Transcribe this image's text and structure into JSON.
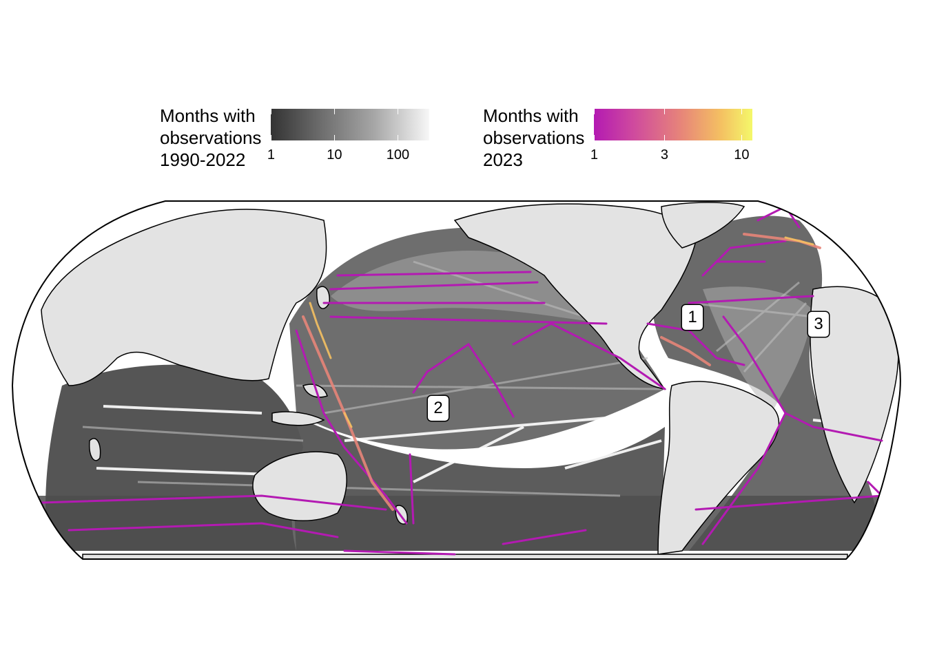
{
  "legend_history": {
    "title_lines": [
      "Months with",
      "observations",
      "1990-2022"
    ],
    "tick_labels": [
      "1",
      "10",
      "100"
    ],
    "colors": [
      "#333333",
      "#a6a6a6",
      "#f7f7f7"
    ]
  },
  "legend_2023": {
    "title_lines": [
      "Months with",
      "observations",
      "2023"
    ],
    "tick_labels": [
      "1",
      "3",
      "10"
    ],
    "colors": [
      "#b31ab2",
      "#e78579",
      "#f4f86a"
    ]
  },
  "map": {
    "projection": "equal-earth",
    "land_color": "#e3e3e3",
    "ocean_no_data_color": "#ffffff",
    "labels": [
      "1",
      "2",
      "3"
    ]
  }
}
